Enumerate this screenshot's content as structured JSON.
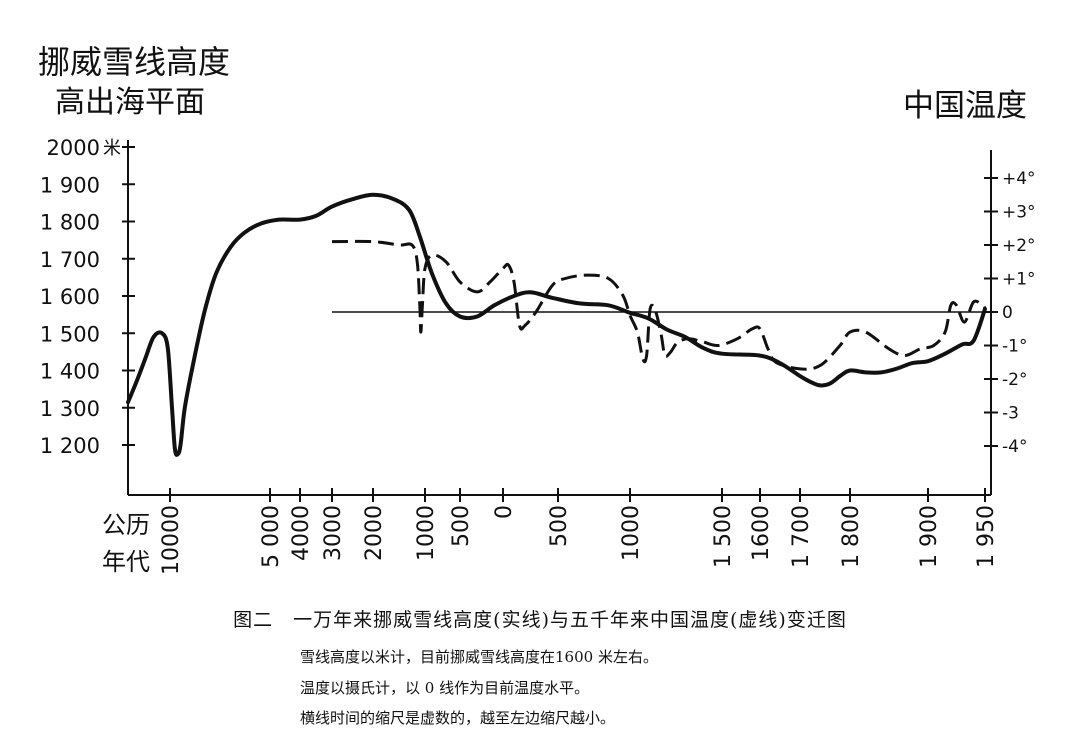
{
  "chart_data": {
    "type": "line",
    "left_axis": {
      "title_line1": "挪威雪线高度",
      "title_line2": "高出海平面",
      "unit": "米",
      "ticks": [
        {
          "value": 2000,
          "label": "2000"
        },
        {
          "value": 1900,
          "label": "1 900"
        },
        {
          "value": 1800,
          "label": "1 800"
        },
        {
          "value": 1700,
          "label": "1 700"
        },
        {
          "value": 1600,
          "label": "1 600"
        },
        {
          "value": 1500,
          "label": "1 500"
        },
        {
          "value": 1400,
          "label": "1 400"
        },
        {
          "value": 1300,
          "label": "1 300"
        },
        {
          "value": 1200,
          "label": "1 200"
        }
      ]
    },
    "right_axis": {
      "title": "中国温度",
      "ticks": [
        {
          "value": 4,
          "label": "+4°"
        },
        {
          "value": 3,
          "label": "+3°"
        },
        {
          "value": 2,
          "label": "+2°"
        },
        {
          "value": 1,
          "label": "+1°"
        },
        {
          "value": 0,
          "label": "0"
        },
        {
          "value": -1,
          "label": "-1°"
        },
        {
          "value": -2,
          "label": "-2°"
        },
        {
          "value": -3,
          "label": "-3"
        },
        {
          "value": -4,
          "label": "-4°"
        }
      ]
    },
    "x_axis": {
      "label_line1": "公历",
      "label_line2": "年代",
      "scale": "nonlinear",
      "ticks": [
        {
          "year": -10000,
          "label": "10000"
        },
        {
          "year": -5000,
          "label": "5 000"
        },
        {
          "year": -4000,
          "label": "4000"
        },
        {
          "year": -3000,
          "label": "3000"
        },
        {
          "year": -2000,
          "label": "2000"
        },
        {
          "year": -1000,
          "label": "1000"
        },
        {
          "year": -500,
          "label": "500"
        },
        {
          "year": 0,
          "label": "0"
        },
        {
          "year": 500,
          "label": "500"
        },
        {
          "year": 1000,
          "label": "1000"
        },
        {
          "year": 1500,
          "label": "1 500"
        },
        {
          "year": 1600,
          "label": "1600"
        },
        {
          "year": 1700,
          "label": "1 700"
        },
        {
          "year": 1800,
          "label": "1 800"
        },
        {
          "year": 1900,
          "label": "1 900"
        },
        {
          "year": 1950,
          "label": "1 950"
        }
      ]
    },
    "reference_line": {
      "snowline_m": 1565,
      "temperature": 0
    },
    "series": [
      {
        "key": "snowline",
        "style": "solid",
        "axis": "left",
        "points": [
          [
            -10000,
            1315
          ],
          [
            -9700,
            1370
          ],
          [
            -9400,
            1430
          ],
          [
            -9100,
            1490
          ],
          [
            -8800,
            1500
          ],
          [
            -8600,
            1460
          ],
          [
            -8450,
            1300
          ],
          [
            -8350,
            1190
          ],
          [
            -8250,
            1175
          ],
          [
            -8150,
            1200
          ],
          [
            -8000,
            1300
          ],
          [
            -7700,
            1420
          ],
          [
            -7300,
            1560
          ],
          [
            -6900,
            1660
          ],
          [
            -6400,
            1730
          ],
          [
            -5900,
            1770
          ],
          [
            -5300,
            1795
          ],
          [
            -4700,
            1805
          ],
          [
            -4000,
            1805
          ],
          [
            -3500,
            1815
          ],
          [
            -3000,
            1840
          ],
          [
            -2500,
            1860
          ],
          [
            -2000,
            1872
          ],
          [
            -1600,
            1860
          ],
          [
            -1300,
            1830
          ],
          [
            -1100,
            1760
          ],
          [
            -900,
            1660
          ],
          [
            -700,
            1580
          ],
          [
            -500,
            1545
          ],
          [
            -300,
            1545
          ],
          [
            -100,
            1575
          ],
          [
            100,
            1600
          ],
          [
            250,
            1610
          ],
          [
            450,
            1595
          ],
          [
            650,
            1580
          ],
          [
            850,
            1575
          ],
          [
            1000,
            1555
          ],
          [
            1100,
            1540
          ],
          [
            1200,
            1510
          ],
          [
            1300,
            1490
          ],
          [
            1400,
            1460
          ],
          [
            1500,
            1445
          ],
          [
            1600,
            1440
          ],
          [
            1650,
            1420
          ],
          [
            1700,
            1385
          ],
          [
            1720,
            1370
          ],
          [
            1740,
            1360
          ],
          [
            1760,
            1365
          ],
          [
            1780,
            1385
          ],
          [
            1800,
            1400
          ],
          [
            1820,
            1395
          ],
          [
            1840,
            1395
          ],
          [
            1860,
            1405
          ],
          [
            1880,
            1420
          ],
          [
            1900,
            1425
          ],
          [
            1915,
            1445
          ],
          [
            1930,
            1470
          ],
          [
            1940,
            1480
          ],
          [
            1950,
            1565
          ]
        ]
      },
      {
        "key": "china_temperature",
        "style": "dashed",
        "axis": "right",
        "points": [
          [
            -3000,
            2.1
          ],
          [
            -2000,
            2.1
          ],
          [
            -1500,
            2.0
          ],
          [
            -1250,
            2.0
          ],
          [
            -1150,
            1.5
          ],
          [
            -1100,
            0.2
          ],
          [
            -1080,
            -0.6
          ],
          [
            -1050,
            0.2
          ],
          [
            -1000,
            1.3
          ],
          [
            -900,
            1.7
          ],
          [
            -700,
            1.5
          ],
          [
            -500,
            0.9
          ],
          [
            -300,
            0.6
          ],
          [
            -150,
            0.9
          ],
          [
            0,
            1.3
          ],
          [
            50,
            1.4
          ],
          [
            100,
            0.9
          ],
          [
            150,
            -0.4
          ],
          [
            200,
            -0.4
          ],
          [
            300,
            0.0
          ],
          [
            450,
            0.8
          ],
          [
            550,
            1.0
          ],
          [
            700,
            1.1
          ],
          [
            850,
            1.0
          ],
          [
            950,
            0.5
          ],
          [
            1000,
            -0.1
          ],
          [
            1040,
            -0.6
          ],
          [
            1070,
            -1.4
          ],
          [
            1090,
            -1.3
          ],
          [
            1110,
            0.1
          ],
          [
            1140,
            0.0
          ],
          [
            1170,
            -0.7
          ],
          [
            1190,
            -1.3
          ],
          [
            1220,
            -1.2
          ],
          [
            1260,
            -0.9
          ],
          [
            1320,
            -0.8
          ],
          [
            1400,
            -0.9
          ],
          [
            1480,
            -1.0
          ],
          [
            1540,
            -0.8
          ],
          [
            1580,
            -0.5
          ],
          [
            1600,
            -0.5
          ],
          [
            1620,
            -1.1
          ],
          [
            1640,
            -1.5
          ],
          [
            1700,
            -1.7
          ],
          [
            1740,
            -1.6
          ],
          [
            1780,
            -1.0
          ],
          [
            1800,
            -0.6
          ],
          [
            1820,
            -0.6
          ],
          [
            1850,
            -1.1
          ],
          [
            1870,
            -1.3
          ],
          [
            1890,
            -1.1
          ],
          [
            1905,
            -1.0
          ],
          [
            1915,
            -0.6
          ],
          [
            1920,
            0.2
          ],
          [
            1925,
            0.2
          ],
          [
            1932,
            -0.3
          ],
          [
            1940,
            0.3
          ],
          [
            1948,
            0.2
          ],
          [
            1950,
            0.1
          ]
        ]
      }
    ]
  },
  "caption": {
    "title": "图二　一万年来挪威雪线高度(实线)与五千年来中国温度(虚线)变迁图",
    "notes": [
      "雪线高度以米计，目前挪威雪线高度在1600 米左右。",
      "温度以摄氏计，以 0 线作为目前温度水平。",
      "横线时间的缩尺是虚数的，越至左边缩尺越小。"
    ]
  },
  "colors": {
    "ink": "#111111",
    "background": "#ffffff"
  }
}
